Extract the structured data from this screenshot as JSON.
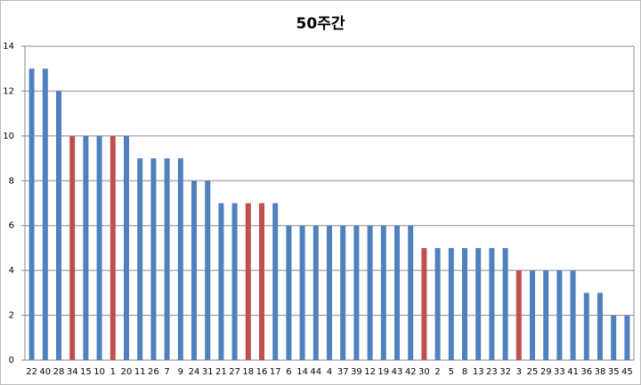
{
  "chart_data": {
    "type": "bar",
    "title": "50주간",
    "categories": [
      "22",
      "40",
      "28",
      "34",
      "15",
      "10",
      "1",
      "20",
      "11",
      "26",
      "7",
      "9",
      "24",
      "31",
      "21",
      "27",
      "18",
      "16",
      "17",
      "6",
      "14",
      "44",
      "4",
      "37",
      "39",
      "12",
      "19",
      "43",
      "42",
      "30",
      "2",
      "5",
      "8",
      "13",
      "23",
      "32",
      "3",
      "25",
      "29",
      "33",
      "41",
      "36",
      "38",
      "35",
      "45"
    ],
    "values": [
      13,
      13,
      12,
      10,
      10,
      10,
      10,
      10,
      9,
      9,
      9,
      9,
      8,
      8,
      7,
      7,
      7,
      7,
      7,
      6,
      6,
      6,
      6,
      6,
      6,
      6,
      6,
      6,
      6,
      5,
      5,
      5,
      5,
      5,
      5,
      5,
      4,
      4,
      4,
      4,
      4,
      3,
      3,
      2,
      2
    ],
    "colors": [
      "#4f81bd",
      "#4f81bd",
      "#4f81bd",
      "#c0504d",
      "#4f81bd",
      "#4f81bd",
      "#c0504d",
      "#4f81bd",
      "#4f81bd",
      "#4f81bd",
      "#4f81bd",
      "#4f81bd",
      "#4f81bd",
      "#4f81bd",
      "#4f81bd",
      "#4f81bd",
      "#c0504d",
      "#c0504d",
      "#4f81bd",
      "#4f81bd",
      "#4f81bd",
      "#4f81bd",
      "#4f81bd",
      "#4f81bd",
      "#4f81bd",
      "#4f81bd",
      "#4f81bd",
      "#4f81bd",
      "#4f81bd",
      "#c0504d",
      "#4f81bd",
      "#4f81bd",
      "#4f81bd",
      "#4f81bd",
      "#4f81bd",
      "#4f81bd",
      "#c0504d",
      "#4f81bd",
      "#4f81bd",
      "#4f81bd",
      "#4f81bd",
      "#4f81bd",
      "#4f81bd",
      "#4f81bd",
      "#4f81bd"
    ],
    "ylim": [
      0,
      14
    ],
    "yticks": [
      0,
      2,
      4,
      6,
      8,
      10,
      12,
      14
    ],
    "grid": true
  }
}
